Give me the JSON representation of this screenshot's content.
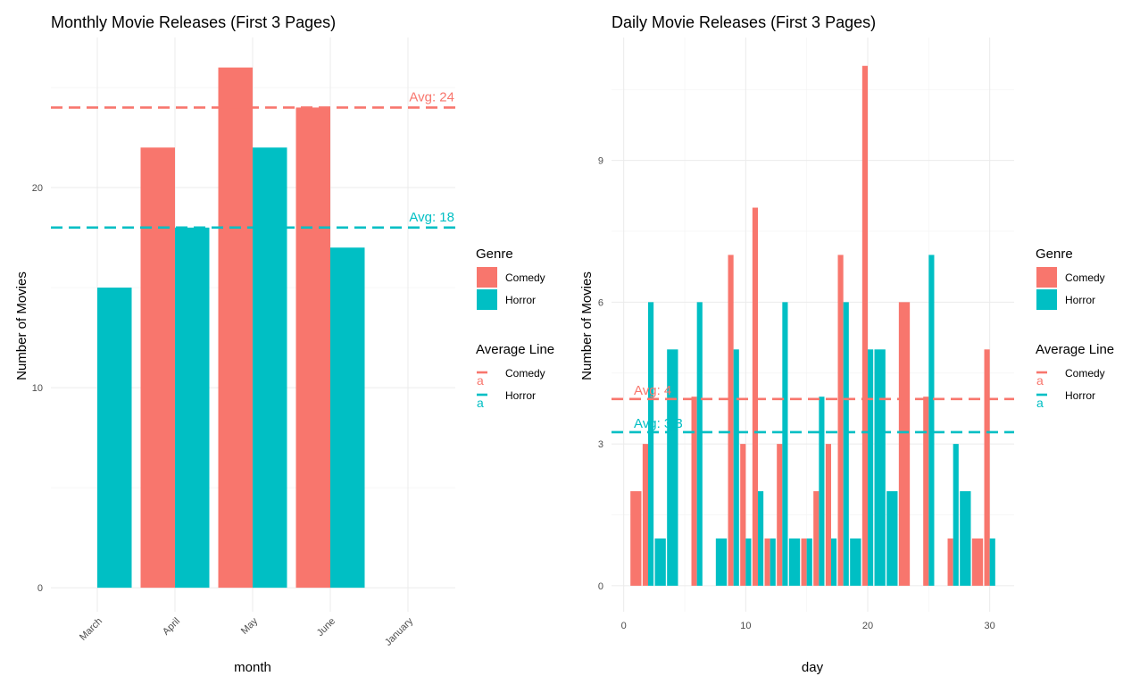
{
  "colors": {
    "comedy": "#F8766D",
    "horror": "#00BFC4"
  },
  "chart_data": [
    {
      "type": "bar",
      "title": "Monthly Movie Releases (First 3 Pages)",
      "xlabel": "month",
      "ylabel": "Number of Movies",
      "categories": [
        "March",
        "April",
        "May",
        "June",
        "January"
      ],
      "series": [
        {
          "name": "Comedy",
          "values": [
            null,
            22,
            26,
            24,
            null
          ]
        },
        {
          "name": "Horror",
          "values": [
            15,
            18,
            22,
            17,
            null
          ]
        }
      ],
      "ylim": [
        -1.2,
        27.5
      ],
      "yticks": [
        0,
        10,
        20
      ],
      "averages": [
        {
          "series": "Comedy",
          "value": 24,
          "label": "Avg: 24"
        },
        {
          "series": "Horror",
          "value": 18,
          "label": "Avg: 18"
        }
      ],
      "legend": {
        "placement": "right",
        "genre_title": "Genre",
        "genre_items": [
          "Comedy",
          "Horror"
        ],
        "avg_title": "Average Line",
        "avg_items": [
          "Comedy",
          "Horror"
        ],
        "key_glyph": "a"
      }
    },
    {
      "type": "bar",
      "title": "Daily Movie Releases (First 3 Pages)",
      "xlabel": "day",
      "ylabel": "Number of Movies",
      "x": [
        1,
        2,
        3,
        4,
        5,
        6,
        7,
        8,
        9,
        10,
        11,
        12,
        13,
        14,
        15,
        16,
        17,
        18,
        19,
        20,
        21,
        22,
        23,
        24,
        25,
        26,
        27,
        28,
        29,
        30
      ],
      "series": [
        {
          "name": "Comedy",
          "values": [
            2,
            3,
            null,
            null,
            null,
            4,
            null,
            null,
            7,
            3,
            8,
            1,
            3,
            null,
            1,
            2,
            3,
            7,
            null,
            11,
            null,
            null,
            6,
            null,
            4,
            null,
            1,
            null,
            1,
            5
          ]
        },
        {
          "name": "Horror",
          "values": [
            null,
            6,
            1,
            5,
            null,
            6,
            null,
            1,
            5,
            1,
            2,
            1,
            6,
            1,
            1,
            4,
            1,
            6,
            1,
            5,
            5,
            2,
            null,
            null,
            7,
            null,
            3,
            2,
            null,
            1
          ]
        }
      ],
      "xlim": [
        -1,
        32
      ],
      "ylim": [
        -0.55,
        11.6
      ],
      "xticks": [
        0,
        10,
        20,
        30
      ],
      "yticks": [
        0,
        3,
        6,
        9
      ],
      "averages": [
        {
          "series": "Comedy",
          "value": 3.95,
          "label": "Avg: 4"
        },
        {
          "series": "Horror",
          "value": 3.25,
          "label": "Avg: 3.3"
        }
      ],
      "legend": {
        "placement": "right",
        "genre_title": "Genre",
        "genre_items": [
          "Comedy",
          "Horror"
        ],
        "avg_title": "Average Line",
        "avg_items": [
          "Comedy",
          "Horror"
        ],
        "key_glyph": "a"
      }
    }
  ]
}
